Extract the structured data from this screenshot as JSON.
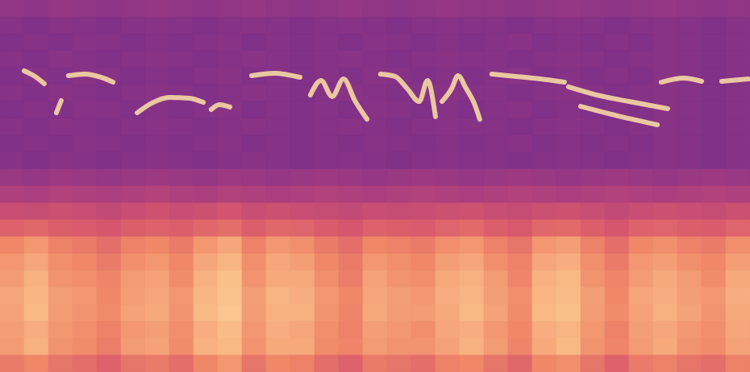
{
  "chart_data": {
    "type": "spectrogram",
    "tick_labels": false,
    "xlim": [
      0,
      31
    ],
    "ylim": [
      0,
      22
    ],
    "color_range": [
      0,
      100
    ],
    "color": "#fde2a6",
    "cells": [
      [
        34,
        33,
        35,
        34,
        33,
        34,
        35,
        34,
        33,
        34,
        35,
        34,
        33,
        34,
        35,
        34,
        33,
        34,
        35,
        34,
        34,
        33,
        34,
        35,
        34,
        33,
        34,
        35,
        34,
        33,
        34
      ],
      [
        31,
        30,
        32,
        31,
        30,
        31,
        32,
        31,
        30,
        31,
        32,
        31,
        30,
        31,
        32,
        31,
        30,
        31,
        32,
        31,
        31,
        30,
        31,
        32,
        31,
        30,
        31,
        32,
        31,
        30,
        31
      ],
      [
        30,
        31,
        30,
        32,
        31,
        30,
        31,
        30,
        31,
        32,
        30,
        31,
        30,
        31,
        30,
        32,
        31,
        30,
        31,
        30,
        31,
        32,
        30,
        31,
        30,
        31,
        30,
        32,
        31,
        30,
        31
      ],
      [
        31,
        30,
        32,
        31,
        30,
        31,
        32,
        31,
        30,
        31,
        32,
        31,
        30,
        31,
        32,
        31,
        30,
        31,
        32,
        31,
        31,
        30,
        31,
        32,
        31,
        30,
        31,
        32,
        31,
        30,
        31
      ],
      [
        30,
        31,
        30,
        32,
        31,
        30,
        31,
        30,
        31,
        32,
        30,
        31,
        30,
        31,
        30,
        32,
        31,
        30,
        31,
        30,
        31,
        32,
        30,
        31,
        30,
        31,
        30,
        32,
        31,
        30,
        31
      ],
      [
        31,
        30,
        32,
        31,
        30,
        31,
        32,
        31,
        30,
        31,
        32,
        31,
        30,
        31,
        32,
        31,
        30,
        31,
        32,
        31,
        31,
        30,
        31,
        32,
        31,
        30,
        31,
        32,
        31,
        30,
        31
      ],
      [
        30,
        31,
        30,
        32,
        31,
        30,
        31,
        30,
        31,
        32,
        30,
        31,
        30,
        31,
        30,
        32,
        31,
        30,
        31,
        30,
        31,
        32,
        30,
        31,
        30,
        31,
        30,
        32,
        31,
        30,
        31
      ],
      [
        31,
        30,
        32,
        31,
        30,
        31,
        32,
        31,
        30,
        31,
        32,
        31,
        30,
        31,
        32,
        31,
        30,
        31,
        32,
        31,
        31,
        30,
        31,
        32,
        31,
        30,
        31,
        32,
        31,
        30,
        31
      ],
      [
        30,
        31,
        30,
        32,
        31,
        30,
        31,
        30,
        31,
        32,
        30,
        31,
        30,
        31,
        30,
        32,
        31,
        30,
        31,
        30,
        31,
        32,
        30,
        31,
        30,
        31,
        30,
        32,
        31,
        30,
        31
      ],
      [
        31,
        30,
        32,
        31,
        30,
        31,
        32,
        31,
        30,
        31,
        32,
        31,
        30,
        31,
        32,
        31,
        30,
        31,
        32,
        31,
        31,
        30,
        31,
        32,
        31,
        30,
        31,
        32,
        31,
        30,
        31
      ],
      [
        36,
        35,
        37,
        36,
        35,
        36,
        37,
        36,
        35,
        37,
        36,
        35,
        36,
        37,
        36,
        35,
        36,
        37,
        36,
        35,
        36,
        37,
        36,
        35,
        36,
        37,
        36,
        35,
        36,
        37,
        36
      ],
      [
        42,
        41,
        43,
        42,
        41,
        42,
        44,
        42,
        41,
        43,
        42,
        41,
        42,
        43,
        42,
        41,
        42,
        43,
        42,
        41,
        42,
        43,
        42,
        41,
        42,
        43,
        42,
        41,
        42,
        43,
        42
      ],
      [
        50,
        49,
        51,
        50,
        48,
        50,
        52,
        50,
        51,
        53,
        50,
        51,
        50,
        49,
        48,
        50,
        49,
        50,
        51,
        52,
        50,
        49,
        51,
        52,
        50,
        48,
        50,
        51,
        50,
        49,
        51
      ],
      [
        58,
        60,
        57,
        56,
        54,
        57,
        58,
        57,
        60,
        62,
        57,
        60,
        59,
        56,
        54,
        58,
        57,
        56,
        59,
        61,
        57,
        55,
        60,
        61,
        57,
        54,
        58,
        59,
        57,
        56,
        59
      ],
      [
        70,
        74,
        68,
        66,
        62,
        68,
        70,
        66,
        74,
        78,
        68,
        74,
        72,
        66,
        62,
        70,
        68,
        66,
        72,
        74,
        68,
        64,
        74,
        76,
        68,
        62,
        70,
        72,
        68,
        66,
        72
      ],
      [
        74,
        78,
        72,
        70,
        66,
        72,
        74,
        70,
        78,
        82,
        72,
        78,
        76,
        70,
        66,
        74,
        72,
        70,
        76,
        78,
        72,
        68,
        78,
        80,
        72,
        66,
        74,
        76,
        72,
        70,
        76
      ],
      [
        75,
        81,
        73,
        72,
        69,
        75,
        77,
        71,
        81,
        85,
        73,
        79,
        79,
        72,
        67,
        77,
        73,
        72,
        79,
        81,
        75,
        69,
        81,
        83,
        73,
        69,
        75,
        79,
        75,
        71,
        79
      ],
      [
        78,
        82,
        76,
        74,
        70,
        76,
        78,
        74,
        82,
        86,
        76,
        82,
        80,
        74,
        70,
        78,
        76,
        74,
        80,
        82,
        76,
        72,
        82,
        84,
        76,
        70,
        78,
        80,
        76,
        74,
        80
      ],
      [
        77,
        83,
        75,
        73,
        71,
        77,
        79,
        73,
        83,
        87,
        75,
        81,
        81,
        73,
        69,
        79,
        75,
        75,
        79,
        83,
        77,
        71,
        83,
        85,
        75,
        71,
        77,
        81,
        77,
        73,
        79
      ],
      [
        76,
        80,
        74,
        72,
        68,
        74,
        76,
        72,
        80,
        84,
        74,
        80,
        78,
        72,
        68,
        76,
        74,
        72,
        78,
        80,
        74,
        70,
        80,
        82,
        74,
        68,
        76,
        78,
        74,
        72,
        78
      ],
      [
        75,
        81,
        73,
        71,
        67,
        75,
        77,
        71,
        81,
        83,
        73,
        79,
        79,
        71,
        69,
        75,
        73,
        73,
        77,
        81,
        75,
        69,
        79,
        83,
        73,
        69,
        75,
        79,
        73,
        71,
        77
      ],
      [
        66,
        70,
        64,
        62,
        58,
        64,
        66,
        62,
        70,
        74,
        64,
        70,
        68,
        62,
        58,
        66,
        64,
        62,
        68,
        70,
        64,
        60,
        70,
        72,
        64,
        58,
        66,
        68,
        64,
        62,
        68
      ]
    ],
    "traces": [
      {
        "x": [
          1.0,
          1.4,
          1.83
        ],
        "y": [
          17.81,
          17.52,
          17.05
        ]
      },
      {
        "x": [
          2.33,
          2.53
        ],
        "y": [
          15.33,
          16.05
        ]
      },
      {
        "x": [
          2.83,
          3.5,
          4.17,
          4.67
        ],
        "y": [
          17.52,
          17.62,
          17.43,
          17.14
        ]
      },
      {
        "x": [
          5.67,
          6.27,
          7.0,
          7.83,
          8.4
        ],
        "y": [
          15.33,
          15.9,
          16.24,
          16.19,
          15.95
        ]
      },
      {
        "x": [
          8.73,
          9.07,
          9.5
        ],
        "y": [
          15.52,
          15.81,
          15.67
        ]
      },
      {
        "x": [
          10.4,
          11.33,
          12.4
        ],
        "y": [
          17.52,
          17.67,
          17.43
        ]
      },
      {
        "x": [
          12.83,
          13.27,
          13.73,
          14.2,
          14.67,
          15.17
        ],
        "y": [
          16.38,
          17.24,
          16.29,
          17.33,
          16.05,
          14.95
        ]
      },
      {
        "x": [
          15.73,
          16.33,
          16.83,
          17.33,
          17.67,
          18.0
        ],
        "y": [
          17.62,
          17.48,
          16.76,
          16.0,
          17.24,
          15.1
        ]
      },
      {
        "x": [
          18.27,
          18.67,
          18.93,
          19.27,
          19.6,
          19.83
        ],
        "y": [
          16.0,
          16.76,
          17.52,
          16.76,
          15.9,
          14.95
        ]
      },
      {
        "x": [
          20.33,
          21.33,
          22.33,
          23.33
        ],
        "y": [
          17.62,
          17.48,
          17.33,
          17.14
        ]
      },
      {
        "x": [
          23.5,
          24.67,
          26.0,
          27.6
        ],
        "y": [
          16.86,
          16.38,
          16.0,
          15.57
        ]
      },
      {
        "x": [
          24.0,
          25.67,
          27.17
        ],
        "y": [
          15.71,
          15.1,
          14.62
        ]
      },
      {
        "x": [
          27.33,
          28.27,
          29.0
        ],
        "y": [
          17.14,
          17.38,
          17.19
        ]
      },
      {
        "x": [
          29.83,
          30.93
        ],
        "y": [
          17.19,
          17.33
        ]
      }
    ]
  }
}
